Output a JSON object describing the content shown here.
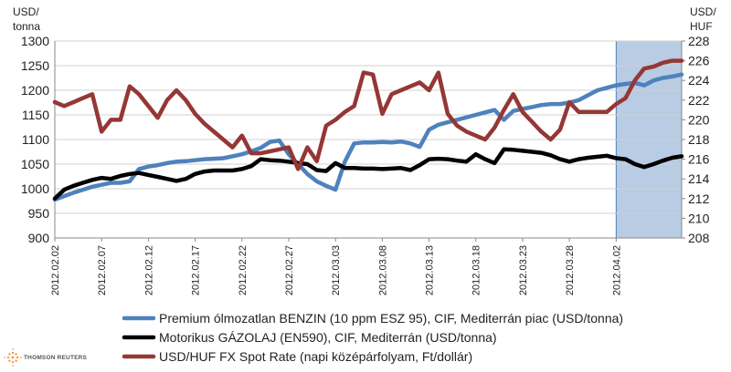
{
  "chart_data": {
    "type": "line",
    "y_left_label_line1": "USD/",
    "y_left_label_line2": "tonna",
    "y_right_label_line1": "USD/",
    "y_right_label_line2": "HUF",
    "y_left_ticks": [
      "1300",
      "1250",
      "1200",
      "1150",
      "1100",
      "1050",
      "1000",
      "950",
      "900"
    ],
    "y_right_ticks": [
      "228",
      "226",
      "224",
      "222",
      "220",
      "218",
      "216",
      "214",
      "212",
      "210",
      "208"
    ],
    "ylim_left": [
      900,
      1300
    ],
    "ylim_right": [
      208,
      228
    ],
    "x_tick_labels": [
      "2012.02.02",
      "2012.02.07",
      "2012.02.12",
      "2012.02.17",
      "2012.02.22",
      "2012.02.27",
      "2012.03.03",
      "2012.03.08",
      "2012.03.13",
      "2012.03.18",
      "2012.03.23",
      "2012.03.28",
      "2012.04.02"
    ],
    "x_range_days": [
      0,
      67
    ],
    "shaded_region_days": [
      60,
      67
    ],
    "grid": true,
    "legend_position": "bottom",
    "series": [
      {
        "name": "Premium ólmozatlan BENZIN (10 ppm ESZ 95), CIF, Mediterrán piac (USD/tonna)",
        "color": "#4f81bd",
        "axis": "left",
        "points": [
          [
            0,
            978
          ],
          [
            1,
            985
          ],
          [
            2,
            992
          ],
          [
            3,
            998
          ],
          [
            4,
            1004
          ],
          [
            5,
            1008
          ],
          [
            6,
            1012
          ],
          [
            7,
            1012
          ],
          [
            8,
            1015
          ],
          [
            9,
            1040
          ],
          [
            10,
            1045
          ],
          [
            11,
            1048
          ],
          [
            12,
            1052
          ],
          [
            13,
            1055
          ],
          [
            14,
            1056
          ],
          [
            15,
            1058
          ],
          [
            16,
            1060
          ],
          [
            17,
            1061
          ],
          [
            18,
            1062
          ],
          [
            19,
            1066
          ],
          [
            20,
            1070
          ],
          [
            21,
            1076
          ],
          [
            22,
            1083
          ],
          [
            23,
            1095
          ],
          [
            24,
            1098
          ],
          [
            25,
            1070
          ],
          [
            26,
            1050
          ],
          [
            27,
            1030
          ],
          [
            28,
            1015
          ],
          [
            29,
            1006
          ],
          [
            30,
            998
          ],
          [
            31,
            1055
          ],
          [
            32,
            1092
          ],
          [
            33,
            1094
          ],
          [
            34,
            1094
          ],
          [
            35,
            1095
          ],
          [
            36,
            1094
          ],
          [
            37,
            1096
          ],
          [
            38,
            1092
          ],
          [
            39,
            1085
          ],
          [
            40,
            1120
          ],
          [
            41,
            1130
          ],
          [
            42,
            1135
          ],
          [
            43,
            1140
          ],
          [
            44,
            1145
          ],
          [
            45,
            1150
          ],
          [
            46,
            1155
          ],
          [
            47,
            1160
          ],
          [
            48,
            1140
          ],
          [
            49,
            1158
          ],
          [
            50,
            1162
          ],
          [
            51,
            1166
          ],
          [
            52,
            1170
          ],
          [
            53,
            1172
          ],
          [
            54,
            1172
          ],
          [
            55,
            1175
          ],
          [
            56,
            1180
          ],
          [
            57,
            1190
          ],
          [
            58,
            1200
          ],
          [
            59,
            1205
          ],
          [
            60,
            1210
          ],
          [
            61,
            1213
          ],
          [
            62,
            1215
          ],
          [
            63,
            1210
          ],
          [
            64,
            1220
          ],
          [
            65,
            1225
          ],
          [
            66,
            1228
          ],
          [
            67,
            1232
          ]
        ]
      },
      {
        "name": "Motorikus GÁZOLAJ (EN590), CIF, Mediterrán (USD/tonna)",
        "color": "#000000",
        "axis": "left",
        "points": [
          [
            0,
            980
          ],
          [
            1,
            998
          ],
          [
            2,
            1006
          ],
          [
            3,
            1012
          ],
          [
            4,
            1018
          ],
          [
            5,
            1022
          ],
          [
            6,
            1020
          ],
          [
            7,
            1026
          ],
          [
            8,
            1030
          ],
          [
            9,
            1032
          ],
          [
            10,
            1028
          ],
          [
            11,
            1024
          ],
          [
            12,
            1020
          ],
          [
            13,
            1016
          ],
          [
            14,
            1020
          ],
          [
            15,
            1030
          ],
          [
            16,
            1035
          ],
          [
            17,
            1037
          ],
          [
            18,
            1037
          ],
          [
            19,
            1037
          ],
          [
            20,
            1040
          ],
          [
            21,
            1046
          ],
          [
            22,
            1060
          ],
          [
            23,
            1058
          ],
          [
            24,
            1057
          ],
          [
            25,
            1055
          ],
          [
            26,
            1052
          ],
          [
            27,
            1050
          ],
          [
            28,
            1038
          ],
          [
            29,
            1036
          ],
          [
            30,
            1052
          ],
          [
            31,
            1042
          ],
          [
            32,
            1042
          ],
          [
            33,
            1041
          ],
          [
            34,
            1041
          ],
          [
            35,
            1040
          ],
          [
            36,
            1041
          ],
          [
            37,
            1042
          ],
          [
            38,
            1038
          ],
          [
            39,
            1048
          ],
          [
            40,
            1060
          ],
          [
            41,
            1061
          ],
          [
            42,
            1060
          ],
          [
            43,
            1057
          ],
          [
            44,
            1055
          ],
          [
            45,
            1070
          ],
          [
            46,
            1060
          ],
          [
            47,
            1052
          ],
          [
            48,
            1080
          ],
          [
            49,
            1079
          ],
          [
            50,
            1077
          ],
          [
            51,
            1075
          ],
          [
            52,
            1073
          ],
          [
            53,
            1068
          ],
          [
            54,
            1060
          ],
          [
            55,
            1055
          ],
          [
            56,
            1060
          ],
          [
            57,
            1063
          ],
          [
            58,
            1065
          ],
          [
            59,
            1067
          ],
          [
            60,
            1062
          ],
          [
            61,
            1060
          ],
          [
            62,
            1050
          ],
          [
            63,
            1044
          ],
          [
            64,
            1050
          ],
          [
            65,
            1057
          ],
          [
            66,
            1063
          ],
          [
            67,
            1066
          ]
        ]
      },
      {
        "name": "USD/HUF FX Spot Rate (napi középárfolyam, Ft/dollár)",
        "color": "#953735",
        "axis": "right",
        "points": [
          [
            0,
            221.8
          ],
          [
            1,
            221.4
          ],
          [
            2,
            221.8
          ],
          [
            3,
            222.2
          ],
          [
            4,
            222.6
          ],
          [
            5,
            218.8
          ],
          [
            6,
            220.0
          ],
          [
            7,
            220.0
          ],
          [
            8,
            223.4
          ],
          [
            9,
            222.6
          ],
          [
            10,
            221.4
          ],
          [
            11,
            220.2
          ],
          [
            12,
            222.0
          ],
          [
            13,
            223.0
          ],
          [
            14,
            222.0
          ],
          [
            15,
            220.6
          ],
          [
            16,
            219.6
          ],
          [
            17,
            218.8
          ],
          [
            18,
            218.0
          ],
          [
            19,
            217.2
          ],
          [
            20,
            218.4
          ],
          [
            21,
            216.6
          ],
          [
            22,
            216.6
          ],
          [
            23,
            216.8
          ],
          [
            24,
            217.0
          ],
          [
            25,
            217.2
          ],
          [
            26,
            215.0
          ],
          [
            27,
            217.2
          ],
          [
            28,
            215.8
          ],
          [
            29,
            219.4
          ],
          [
            30,
            220.0
          ],
          [
            31,
            220.8
          ],
          [
            32,
            221.4
          ],
          [
            33,
            224.8
          ],
          [
            34,
            224.6
          ],
          [
            35,
            220.6
          ],
          [
            36,
            222.6
          ],
          [
            37,
            223.0
          ],
          [
            38,
            223.4
          ],
          [
            39,
            223.8
          ],
          [
            40,
            223.0
          ],
          [
            41,
            224.8
          ],
          [
            42,
            220.6
          ],
          [
            43,
            219.4
          ],
          [
            44,
            218.8
          ],
          [
            45,
            218.4
          ],
          [
            46,
            218.0
          ],
          [
            47,
            219.2
          ],
          [
            48,
            221.0
          ],
          [
            49,
            222.6
          ],
          [
            50,
            220.8
          ],
          [
            51,
            219.8
          ],
          [
            52,
            218.8
          ],
          [
            53,
            218.0
          ],
          [
            54,
            219.0
          ],
          [
            55,
            221.8
          ],
          [
            56,
            220.8
          ],
          [
            57,
            220.8
          ],
          [
            58,
            220.8
          ],
          [
            59,
            220.8
          ],
          [
            60,
            221.6
          ],
          [
            61,
            222.2
          ],
          [
            62,
            224.0
          ],
          [
            63,
            225.2
          ],
          [
            64,
            225.4
          ],
          [
            65,
            225.8
          ],
          [
            66,
            226.0
          ],
          [
            67,
            226.0
          ]
        ]
      }
    ]
  },
  "branding": {
    "logo_text": "THOMSON REUTERS"
  }
}
